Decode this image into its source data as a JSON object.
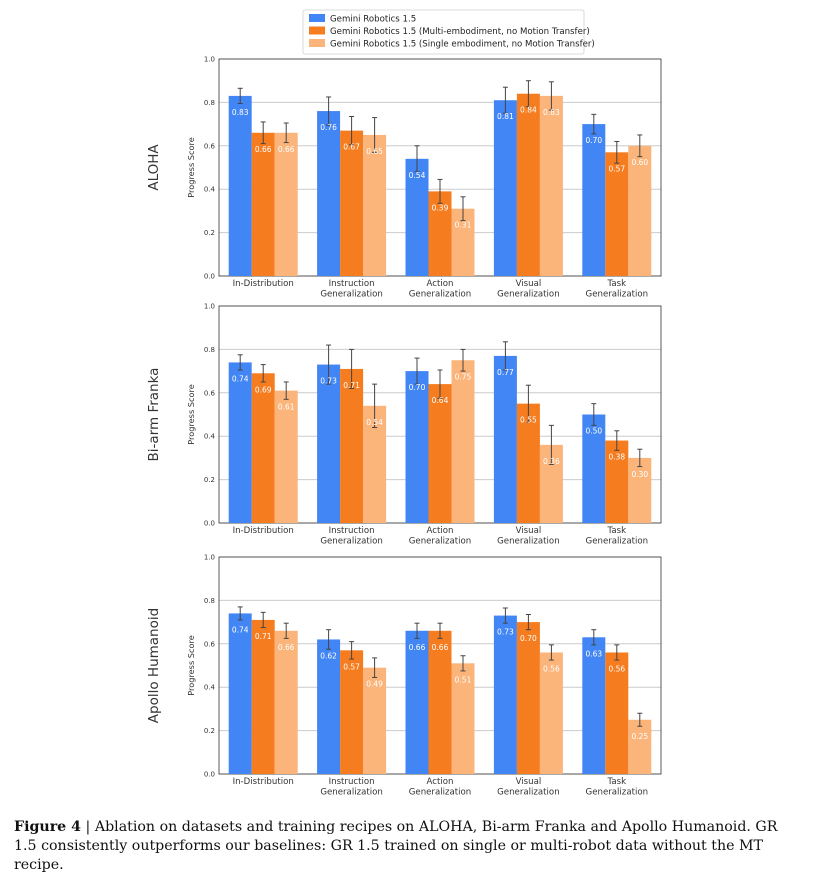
{
  "legend": {
    "items": [
      {
        "label": "Gemini Robotics 1.5",
        "color": "#4285F4"
      },
      {
        "label": "Gemini Robotics 1.5 (Multi-embodiment, no Motion Transfer)",
        "color": "#F57C1F"
      },
      {
        "label": "Gemini Robotics 1.5 (Single embodiment, no Motion Transfer)",
        "color": "#FBB47A"
      }
    ]
  },
  "chart_data": [
    {
      "type": "bar",
      "title": "ALOHA",
      "ylabel": "Progress Score",
      "ylim": [
        0,
        1.0
      ],
      "yticks": [
        "0.0",
        "0.2",
        "0.4",
        "0.6",
        "0.8",
        "1.0"
      ],
      "categories": [
        [
          "In-Distribution"
        ],
        [
          "Instruction",
          "Generalization"
        ],
        [
          "Action",
          "Generalization"
        ],
        [
          "Visual",
          "Generalization"
        ],
        [
          "Task",
          "Generalization"
        ]
      ],
      "series": [
        {
          "name": "Gemini Robotics 1.5",
          "values": [
            0.83,
            0.76,
            0.54,
            0.81,
            0.7
          ],
          "errors": [
            0.035,
            0.065,
            0.06,
            0.06,
            0.045
          ]
        },
        {
          "name": "Gemini Robotics 1.5 (Multi-embodiment, no Motion Transfer)",
          "values": [
            0.66,
            0.67,
            0.39,
            0.84,
            0.57
          ],
          "errors": [
            0.05,
            0.065,
            0.055,
            0.06,
            0.05
          ]
        },
        {
          "name": "Gemini Robotics 1.5 (Single embodiment, no Motion Transfer)",
          "values": [
            0.66,
            0.65,
            0.31,
            0.83,
            0.6
          ],
          "errors": [
            0.045,
            0.08,
            0.055,
            0.065,
            0.05
          ]
        }
      ],
      "value_labels": [
        [
          "0.83",
          "0.76",
          "0.54",
          "0.81",
          "0.70"
        ],
        [
          "0.66",
          "0.67",
          "0.39",
          "0.84",
          "0.57"
        ],
        [
          "0.66",
          "0.65",
          "0.31",
          "0.83",
          "0.60"
        ]
      ]
    },
    {
      "type": "bar",
      "title": "Bi-arm Franka",
      "ylabel": "Progress Score",
      "ylim": [
        0,
        1.0
      ],
      "yticks": [
        "0.0",
        "0.2",
        "0.4",
        "0.6",
        "0.8",
        "1.0"
      ],
      "categories": [
        [
          "In-Distribution"
        ],
        [
          "Instruction",
          "Generalization"
        ],
        [
          "Action",
          "Generalization"
        ],
        [
          "Visual",
          "Generalization"
        ],
        [
          "Task",
          "Generalization"
        ]
      ],
      "series": [
        {
          "name": "Gemini Robotics 1.5",
          "values": [
            0.74,
            0.73,
            0.7,
            0.77,
            0.5
          ],
          "errors": [
            0.035,
            0.09,
            0.06,
            0.065,
            0.05
          ]
        },
        {
          "name": "Gemini Robotics 1.5 (Multi-embodiment, no Motion Transfer)",
          "values": [
            0.69,
            0.71,
            0.64,
            0.55,
            0.38
          ],
          "errors": [
            0.04,
            0.09,
            0.065,
            0.085,
            0.045
          ]
        },
        {
          "name": "Gemini Robotics 1.5 (Single embodiment, no Motion Transfer)",
          "values": [
            0.61,
            0.54,
            0.75,
            0.36,
            0.3
          ],
          "errors": [
            0.04,
            0.1,
            0.05,
            0.09,
            0.04
          ]
        }
      ],
      "value_labels": [
        [
          "0.74",
          "0.73",
          "0.70",
          "0.77",
          "0.50"
        ],
        [
          "0.69",
          "0.71",
          "0.64",
          "0.55",
          "0.38"
        ],
        [
          "0.61",
          "0.54",
          "0.75",
          "0.36",
          "0.30"
        ]
      ]
    },
    {
      "type": "bar",
      "title": "Apollo Humanoid",
      "ylabel": "Progress Score",
      "ylim": [
        0,
        1.0
      ],
      "yticks": [
        "0.0",
        "0.2",
        "0.4",
        "0.6",
        "0.8",
        "1.0"
      ],
      "categories": [
        [
          "In-Distribution"
        ],
        [
          "Instruction",
          "Generalization"
        ],
        [
          "Action",
          "Generalization"
        ],
        [
          "Visual",
          "Generalization"
        ],
        [
          "Task",
          "Generalization"
        ]
      ],
      "series": [
        {
          "name": "Gemini Robotics 1.5",
          "values": [
            0.74,
            0.62,
            0.66,
            0.73,
            0.63
          ],
          "errors": [
            0.03,
            0.045,
            0.035,
            0.035,
            0.035
          ]
        },
        {
          "name": "Gemini Robotics 1.5 (Multi-embodiment, no Motion Transfer)",
          "values": [
            0.71,
            0.57,
            0.66,
            0.7,
            0.56
          ],
          "errors": [
            0.035,
            0.04,
            0.035,
            0.035,
            0.035
          ]
        },
        {
          "name": "Gemini Robotics 1.5 (Single embodiment, no Motion Transfer)",
          "values": [
            0.66,
            0.49,
            0.51,
            0.56,
            0.25
          ],
          "errors": [
            0.035,
            0.045,
            0.035,
            0.035,
            0.03
          ]
        }
      ],
      "value_labels": [
        [
          "0.74",
          "0.62",
          "0.66",
          "0.73",
          "0.63"
        ],
        [
          "0.71",
          "0.57",
          "0.66",
          "0.70",
          "0.56"
        ],
        [
          "0.66",
          "0.49",
          "0.51",
          "0.56",
          "0.25"
        ]
      ]
    }
  ],
  "caption": {
    "label": "Figure 4",
    "separator": "|",
    "text": "Ablation on datasets and training recipes on ALOHA, Bi-arm Franka and Apollo Humanoid. GR 1.5 consistently outperforms our baselines: GR 1.5 trained on single or multi-robot data without the MT recipe."
  }
}
